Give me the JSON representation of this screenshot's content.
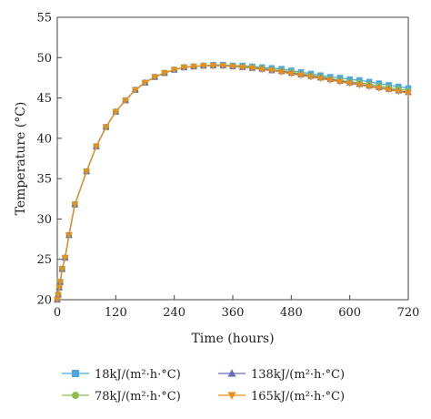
{
  "chart_data": {
    "type": "line",
    "xlabel": "Time (hours)",
    "ylabel": "Temperature (°C)",
    "xlim": [
      0,
      720
    ],
    "ylim": [
      20,
      55
    ],
    "xticks": [
      0,
      120,
      240,
      360,
      480,
      600,
      720
    ],
    "yticks": [
      20,
      25,
      30,
      35,
      40,
      45,
      50,
      55
    ],
    "grid": false,
    "legend_position": "bottom",
    "series": [
      {
        "name": "18kJ/(m²·h·°C)",
        "color": "#4aa8e0",
        "marker": "square",
        "x": [
          0,
          2,
          4,
          6,
          10,
          16,
          24,
          36,
          60,
          80,
          100,
          120,
          140,
          160,
          180,
          200,
          220,
          240,
          260,
          280,
          300,
          320,
          340,
          360,
          380,
          400,
          420,
          440,
          460,
          480,
          500,
          520,
          540,
          560,
          580,
          600,
          620,
          640,
          660,
          680,
          700,
          720
        ],
        "y": [
          20.0,
          20.6,
          21.5,
          22.2,
          23.8,
          25.2,
          28.0,
          31.8,
          35.9,
          39.0,
          41.4,
          43.3,
          44.7,
          46.0,
          46.9,
          47.6,
          48.1,
          48.5,
          48.8,
          48.9,
          49.0,
          49.1,
          49.1,
          49.0,
          49.0,
          48.9,
          48.8,
          48.7,
          48.6,
          48.4,
          48.2,
          48.0,
          47.8,
          47.6,
          47.5,
          47.3,
          47.2,
          47.0,
          46.8,
          46.6,
          46.4,
          46.2
        ]
      },
      {
        "name": "78kJ/(m²·h·°C)",
        "color": "#8cbf4a",
        "marker": "circle",
        "x": [
          0,
          2,
          4,
          6,
          10,
          16,
          24,
          36,
          60,
          80,
          100,
          120,
          140,
          160,
          180,
          200,
          220,
          240,
          260,
          280,
          300,
          320,
          340,
          360,
          380,
          400,
          420,
          440,
          460,
          480,
          500,
          520,
          540,
          560,
          580,
          600,
          620,
          640,
          660,
          680,
          700,
          720
        ],
        "y": [
          20.0,
          20.6,
          21.5,
          22.2,
          23.8,
          25.2,
          28.0,
          31.8,
          35.9,
          39.0,
          41.4,
          43.3,
          44.7,
          46.0,
          46.9,
          47.6,
          48.1,
          48.5,
          48.8,
          48.9,
          49.0,
          49.0,
          49.0,
          48.9,
          48.9,
          48.8,
          48.7,
          48.5,
          48.4,
          48.2,
          48.0,
          47.8,
          47.6,
          47.4,
          47.2,
          47.0,
          46.9,
          46.7,
          46.5,
          46.3,
          46.1,
          45.9
        ]
      },
      {
        "name": "138kJ/(m²·h·°C)",
        "color": "#6a6fb8",
        "marker": "triangle-up",
        "x": [
          0,
          2,
          4,
          6,
          10,
          16,
          24,
          36,
          60,
          80,
          100,
          120,
          140,
          160,
          180,
          200,
          220,
          240,
          260,
          280,
          300,
          320,
          340,
          360,
          380,
          400,
          420,
          440,
          460,
          480,
          500,
          520,
          540,
          560,
          580,
          600,
          620,
          640,
          660,
          680,
          700,
          720
        ],
        "y": [
          20.0,
          20.6,
          21.5,
          22.2,
          23.8,
          25.2,
          28.0,
          31.8,
          35.9,
          39.0,
          41.4,
          43.3,
          44.7,
          46.0,
          46.9,
          47.6,
          48.1,
          48.5,
          48.8,
          48.9,
          49.0,
          49.0,
          49.0,
          48.9,
          48.8,
          48.7,
          48.6,
          48.4,
          48.3,
          48.1,
          47.9,
          47.7,
          47.5,
          47.3,
          47.1,
          46.9,
          46.7,
          46.5,
          46.3,
          46.1,
          45.9,
          45.7
        ]
      },
      {
        "name": "165kJ/(m²·h·°C)",
        "color": "#e8901a",
        "marker": "triangle-down",
        "x": [
          0,
          2,
          4,
          6,
          10,
          16,
          24,
          36,
          60,
          80,
          100,
          120,
          140,
          160,
          180,
          200,
          220,
          240,
          260,
          280,
          300,
          320,
          340,
          360,
          380,
          400,
          420,
          440,
          460,
          480,
          500,
          520,
          540,
          560,
          580,
          600,
          620,
          640,
          660,
          680,
          700,
          720
        ],
        "y": [
          20.0,
          20.6,
          21.5,
          22.2,
          23.8,
          25.2,
          28.0,
          31.8,
          35.9,
          39.0,
          41.4,
          43.3,
          44.7,
          46.0,
          46.9,
          47.6,
          48.1,
          48.5,
          48.8,
          48.9,
          49.0,
          49.0,
          49.0,
          48.9,
          48.8,
          48.7,
          48.5,
          48.4,
          48.2,
          48.0,
          47.8,
          47.6,
          47.4,
          47.2,
          47.0,
          46.8,
          46.6,
          46.4,
          46.2,
          46.0,
          45.8,
          45.6
        ]
      }
    ]
  }
}
